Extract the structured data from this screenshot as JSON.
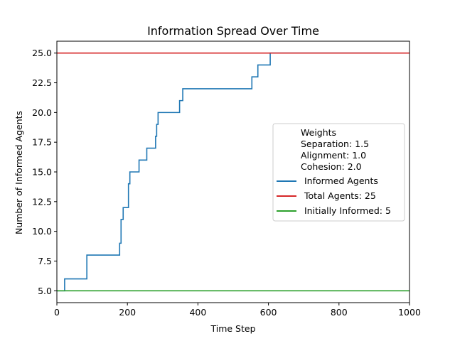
{
  "chart_data": {
    "type": "line",
    "title": "Information Spread Over Time",
    "xlabel": "Time Step",
    "ylabel": "Number of Informed Agents",
    "xlim": [
      0,
      1000
    ],
    "ylim": [
      4.0,
      26.0
    ],
    "x_ticks": [
      0,
      200,
      400,
      600,
      800,
      1000
    ],
    "y_ticks": [
      5.0,
      7.5,
      10.0,
      12.5,
      15.0,
      17.5,
      20.0,
      22.5,
      25.0
    ],
    "x_tick_labels": [
      "0",
      "200",
      "400",
      "600",
      "800",
      "1000"
    ],
    "y_tick_labels": [
      "5.0",
      "7.5",
      "10.0",
      "12.5",
      "15.0",
      "17.5",
      "20.0",
      "22.5",
      "25.0"
    ],
    "grid": false,
    "legend_position": "center-right",
    "legend_header": [
      "Weights",
      "Separation: 1.5",
      "Alignment: 1.0",
      "Cohesion: 2.0"
    ],
    "series": [
      {
        "name": "Informed Agents",
        "color": "#1f77b4",
        "step": true,
        "x": [
          0,
          22,
          85,
          178,
          182,
          188,
          203,
          207,
          233,
          255,
          280,
          283,
          287,
          348,
          357,
          553,
          570,
          605,
          917
        ],
        "y": [
          5,
          6,
          8,
          9,
          11,
          12,
          14,
          15,
          16,
          17,
          18,
          19,
          20,
          21,
          22,
          23,
          24,
          25,
          25
        ],
        "x_end": 917
      },
      {
        "name": "Total Agents: 25",
        "color": "#d62728",
        "hline": 25
      },
      {
        "name": "Initially Informed: 5",
        "color": "#2ca02c",
        "hline": 5
      }
    ]
  }
}
